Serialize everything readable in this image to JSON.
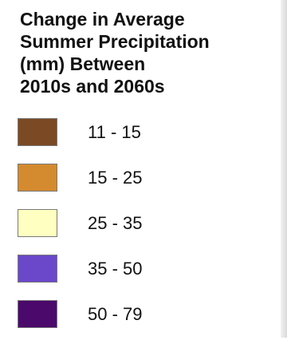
{
  "chart_data": {
    "type": "legend",
    "title_lines": [
      "Change in Average",
      "Summer Precipitation",
      "(mm) Between",
      "2010s and 2060s"
    ],
    "items": [
      {
        "label": "11 - 15",
        "min": 11,
        "max": 15,
        "color": "#7b4a24"
      },
      {
        "label": "15 - 25",
        "min": 15,
        "max": 25,
        "color": "#d48a2f"
      },
      {
        "label": "25 - 35",
        "min": 25,
        "max": 35,
        "color": "#ffffc2"
      },
      {
        "label": "35 - 50",
        "min": 35,
        "max": 50,
        "color": "#6a48c9"
      },
      {
        "label": "50 - 79",
        "min": 50,
        "max": 79,
        "color": "#4b0a6b"
      }
    ]
  }
}
